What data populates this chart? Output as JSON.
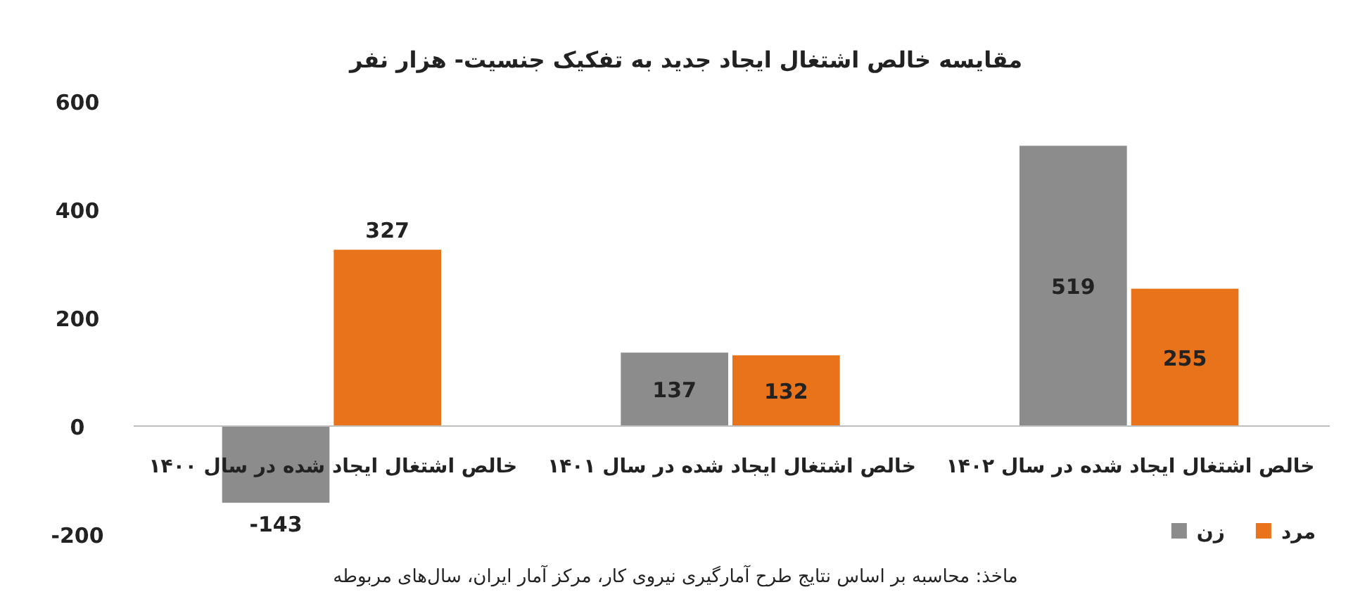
{
  "chart_data": {
    "type": "bar",
    "title": "مقایسه خالص اشتغال ایجاد جدید به تفکیک جنسیت- هزار نفر",
    "categories": [
      "خالص اشتغال ایجاد شده در سال ۱۴۰۰",
      "خالص اشتغال ایجاد شده در سال ۱۴۰۱",
      "خالص اشتغال ایجاد شده در سال ۱۴۰۲"
    ],
    "series": [
      {
        "name": "زن",
        "color": "#8c8c8c",
        "values": [
          -143,
          137,
          519
        ]
      },
      {
        "name": "مرد",
        "color": "#e8731a",
        "values": [
          327,
          132,
          255
        ]
      }
    ],
    "ylim": [
      -200,
      600
    ],
    "yticks": [
      -200,
      0,
      200,
      400,
      600
    ],
    "data_labels": true,
    "legend": "bottom right",
    "annotations": [
      "ماخذ: محاسبه بر اساس نتایج طرح آمارگیری نیروی کار، مرکز آمار ایران، سال‌های مربوطه"
    ]
  }
}
